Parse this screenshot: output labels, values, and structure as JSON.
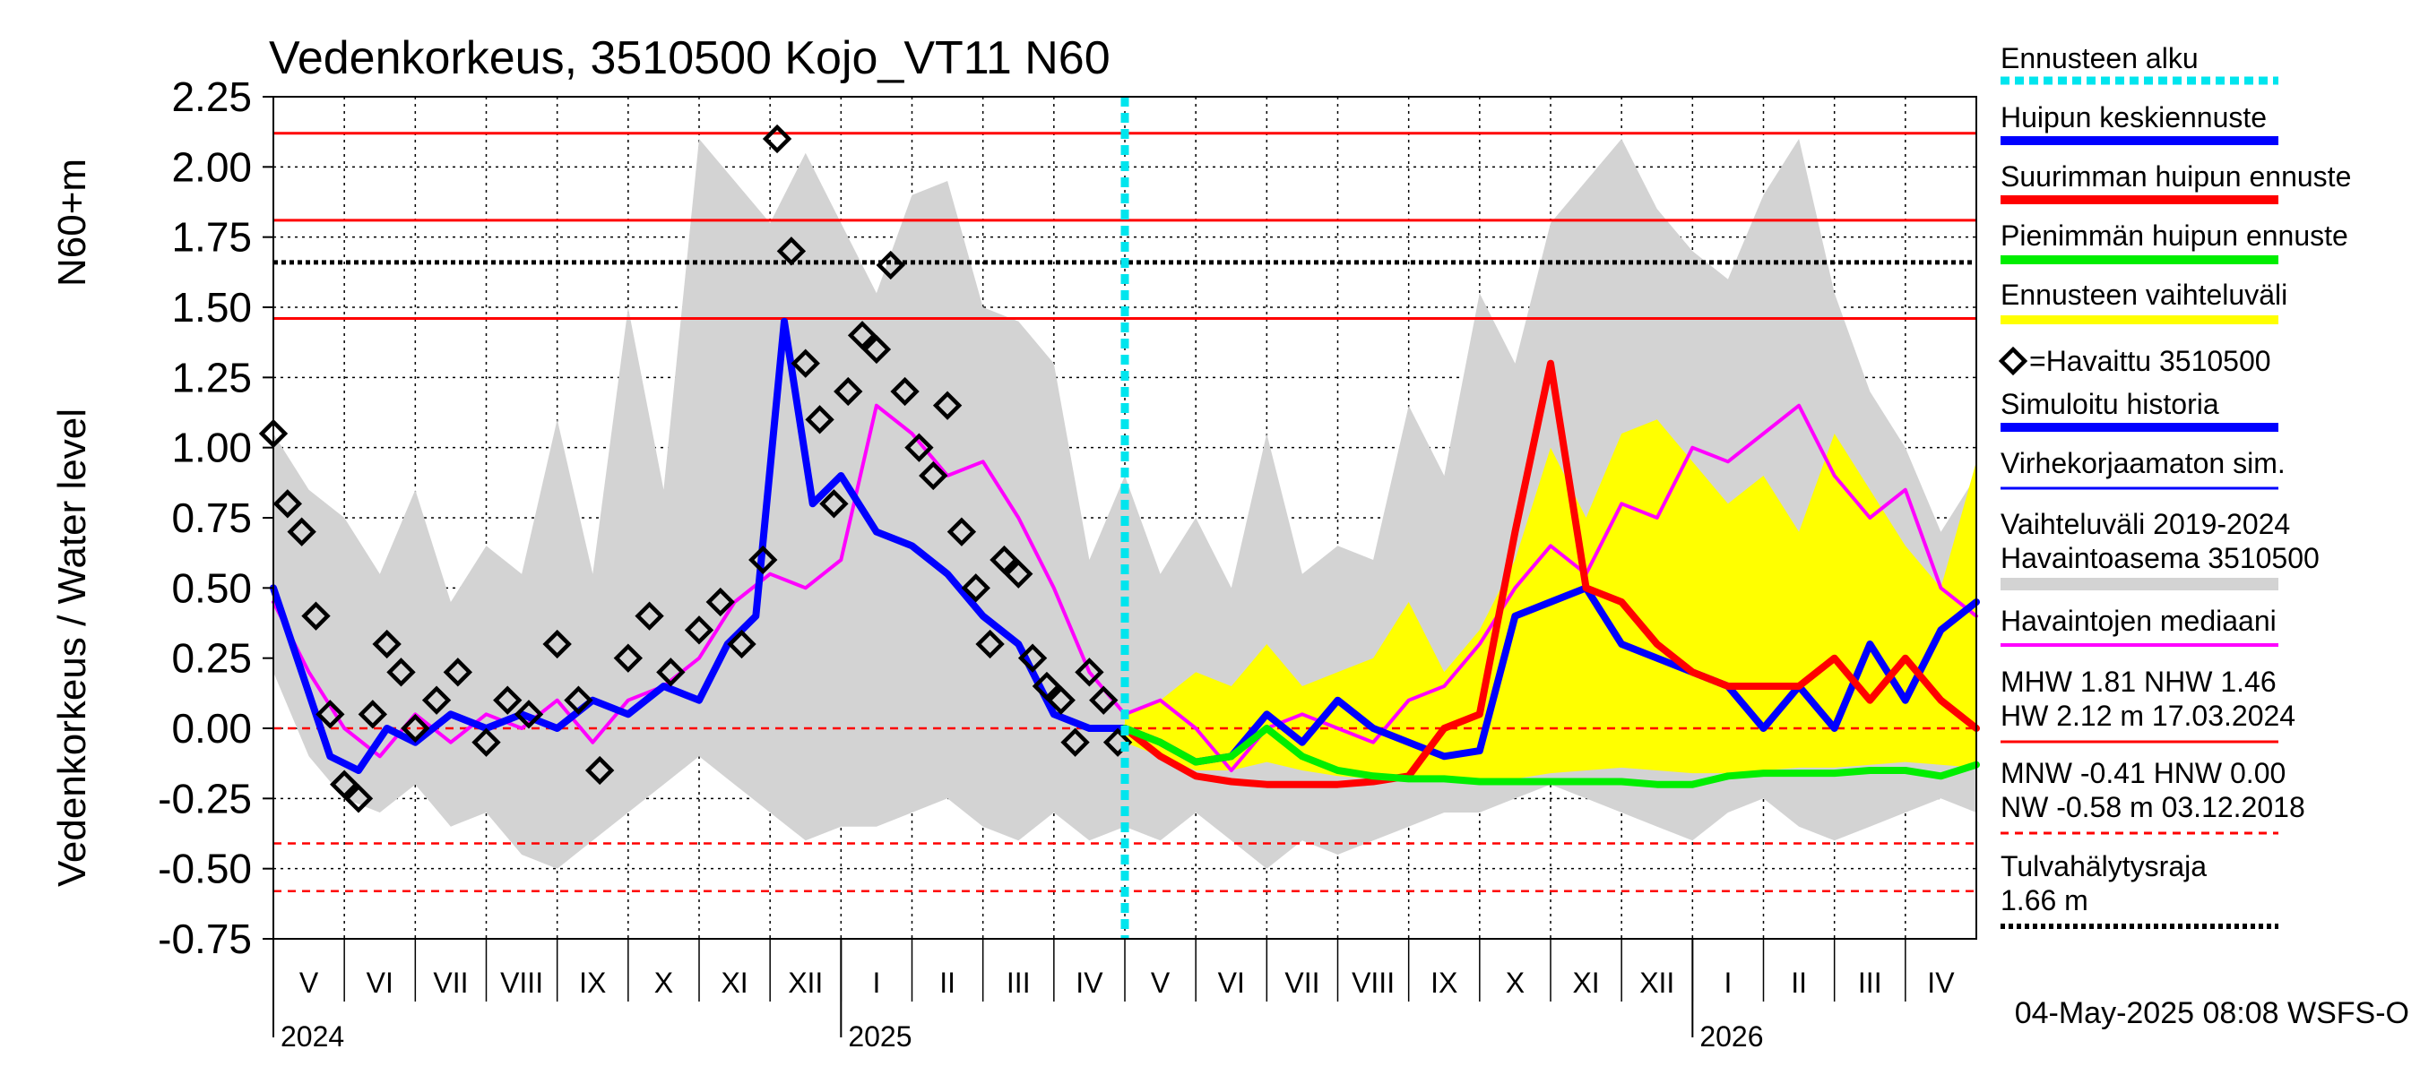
{
  "chart_data": {
    "type": "line",
    "title": "Vedenkorkeus, 3510500 Kojo_VT11 N60",
    "ylabel": "Vedenkorkeus / Water level",
    "ylabel_unit": "N60+m",
    "ylim": [
      -0.75,
      2.25
    ],
    "yticks": [
      2.25,
      2.0,
      1.75,
      1.5,
      1.25,
      1.0,
      0.75,
      0.5,
      0.25,
      0.0,
      -0.25,
      -0.5,
      -0.75
    ],
    "ytick_labels": [
      "2.25",
      "2.00",
      "1.75",
      "1.50",
      "1.25",
      "1.00",
      "0.75",
      "0.50",
      "0.25",
      "0.00",
      "-0.25",
      "-0.50",
      "-0.75"
    ],
    "x_months": [
      "V",
      "VI",
      "VII",
      "VIII",
      "IX",
      "X",
      "XI",
      "XII",
      "I",
      "II",
      "III",
      "IV",
      "V",
      "VI",
      "VII",
      "VIII",
      "IX",
      "X",
      "XI",
      "XII",
      "I",
      "II",
      "III",
      "IV"
    ],
    "x_years": [
      {
        "label": "2024",
        "month_index": 0
      },
      {
        "label": "2025",
        "month_index": 8
      },
      {
        "label": "2026",
        "month_index": 20
      }
    ],
    "forecast_start_month": 12,
    "reference_lines": {
      "HW": 2.12,
      "MHW": 1.81,
      "NHW": 1.46,
      "flood_alert": 1.66,
      "HNW": 0.0,
      "MNW": -0.41,
      "NW": -0.58
    },
    "series": [
      {
        "name": "Vaihteluväli 2019-2024 Havaintoasema 3510500",
        "kind": "band",
        "color": "#d3d3d3",
        "x": [
          0,
          0.5,
          1,
          1.5,
          2,
          2.5,
          3,
          3.5,
          4,
          4.5,
          5,
          5.5,
          6,
          6.5,
          7,
          7.5,
          8,
          8.5,
          9,
          9.5,
          10,
          10.5,
          11,
          11.5,
          12,
          12.5,
          13,
          13.5,
          14,
          14.5,
          15,
          15.5,
          16,
          16.5,
          17,
          17.5,
          18,
          18.5,
          19,
          19.5,
          20,
          20.5,
          21,
          21.5,
          22,
          22.5,
          23,
          23.5,
          24
        ],
        "upper": [
          1.05,
          0.85,
          0.75,
          0.55,
          0.85,
          0.45,
          0.65,
          0.55,
          1.1,
          0.55,
          1.5,
          0.85,
          2.1,
          1.95,
          1.8,
          2.05,
          1.8,
          1.55,
          1.9,
          1.95,
          1.5,
          1.45,
          1.3,
          0.6,
          0.9,
          0.55,
          0.75,
          0.5,
          1.05,
          0.55,
          0.65,
          0.6,
          1.15,
          0.9,
          1.55,
          1.3,
          1.8,
          1.95,
          2.1,
          1.85,
          1.7,
          1.6,
          1.9,
          2.1,
          1.55,
          1.2,
          1.0,
          0.7,
          0.9
        ],
        "lower": [
          0.2,
          -0.1,
          -0.25,
          -0.3,
          -0.2,
          -0.35,
          -0.3,
          -0.45,
          -0.5,
          -0.4,
          -0.3,
          -0.2,
          -0.1,
          -0.2,
          -0.3,
          -0.4,
          -0.35,
          -0.35,
          -0.3,
          -0.25,
          -0.35,
          -0.4,
          -0.3,
          -0.4,
          -0.35,
          -0.4,
          -0.3,
          -0.4,
          -0.5,
          -0.4,
          -0.45,
          -0.4,
          -0.35,
          -0.3,
          -0.3,
          -0.25,
          -0.2,
          -0.25,
          -0.3,
          -0.35,
          -0.4,
          -0.3,
          -0.25,
          -0.35,
          -0.4,
          -0.35,
          -0.3,
          -0.25,
          -0.3
        ]
      },
      {
        "name": "Ennusteen vaihteluväli",
        "kind": "band",
        "color": "#ffff00",
        "x": [
          12,
          12.5,
          13,
          13.5,
          14,
          14.5,
          15,
          15.5,
          16,
          16.5,
          17,
          17.5,
          18,
          18.5,
          19,
          19.5,
          20,
          20.5,
          21,
          21.5,
          22,
          22.5,
          23,
          23.5,
          24
        ],
        "upper": [
          0.05,
          0.1,
          0.2,
          0.15,
          0.3,
          0.15,
          0.2,
          0.25,
          0.45,
          0.2,
          0.35,
          0.6,
          1.0,
          0.75,
          1.05,
          1.1,
          0.95,
          0.8,
          0.9,
          0.7,
          1.05,
          0.85,
          0.65,
          0.5,
          0.95
        ],
        "lower": [
          -0.05,
          -0.1,
          -0.15,
          -0.15,
          -0.12,
          -0.15,
          -0.17,
          -0.18,
          -0.18,
          -0.18,
          -0.2,
          -0.18,
          -0.16,
          -0.15,
          -0.14,
          -0.15,
          -0.16,
          -0.16,
          -0.15,
          -0.14,
          -0.14,
          -0.13,
          -0.12,
          -0.13,
          -0.14
        ]
      },
      {
        "name": "Havaintojen mediaani",
        "kind": "line",
        "color": "#ff00ff",
        "x": [
          0,
          0.5,
          1,
          1.5,
          2,
          2.5,
          3,
          3.5,
          4,
          4.5,
          5,
          5.5,
          6,
          6.5,
          7,
          7.5,
          8,
          8.5,
          9,
          9.5,
          10,
          10.5,
          11,
          11.5,
          12,
          12.5,
          13,
          13.5,
          14,
          14.5,
          15,
          15.5,
          16,
          16.5,
          17,
          17.5,
          18,
          18.5,
          19,
          19.5,
          20,
          20.5,
          21,
          21.5,
          22,
          22.5,
          23,
          23.5,
          24
        ],
        "values": [
          0.45,
          0.2,
          0.0,
          -0.1,
          0.05,
          -0.05,
          0.05,
          0.0,
          0.1,
          -0.05,
          0.1,
          0.15,
          0.25,
          0.45,
          0.55,
          0.5,
          0.6,
          1.15,
          1.05,
          0.9,
          0.95,
          0.75,
          0.5,
          0.2,
          0.05,
          0.1,
          0.0,
          -0.15,
          0.0,
          0.05,
          0.0,
          -0.05,
          0.1,
          0.15,
          0.3,
          0.5,
          0.65,
          0.55,
          0.8,
          0.75,
          1.0,
          0.95,
          1.05,
          1.15,
          0.9,
          0.75,
          0.85,
          0.5,
          0.4
        ]
      },
      {
        "name": "Simuloitu historia",
        "kind": "line",
        "color": "#0000ff",
        "x": [
          0,
          0.4,
          0.8,
          1.2,
          1.6,
          2,
          2.5,
          3,
          3.5,
          4,
          4.5,
          5,
          5.5,
          6,
          6.4,
          6.8,
          7.2,
          7.6,
          8,
          8.5,
          9,
          9.5,
          10,
          10.5,
          11,
          11.5,
          12
        ],
        "values": [
          0.5,
          0.2,
          -0.1,
          -0.15,
          0.0,
          -0.05,
          0.05,
          0.0,
          0.05,
          0.0,
          0.1,
          0.05,
          0.15,
          0.1,
          0.3,
          0.4,
          1.45,
          0.8,
          0.9,
          0.7,
          0.65,
          0.55,
          0.4,
          0.3,
          0.05,
          0.0,
          0.0
        ]
      },
      {
        "name": "Havaittu 3510500",
        "kind": "markers",
        "color": "#000000",
        "x": [
          0,
          0.2,
          0.4,
          0.6,
          0.8,
          1.0,
          1.2,
          1.4,
          1.6,
          1.8,
          2,
          2.3,
          2.6,
          3,
          3.3,
          3.6,
          4,
          4.3,
          4.6,
          5,
          5.3,
          5.6,
          6,
          6.3,
          6.6,
          6.9,
          7.1,
          7.3,
          7.5,
          7.7,
          7.9,
          8.1,
          8.3,
          8.5,
          8.7,
          8.9,
          9.1,
          9.3,
          9.5,
          9.7,
          9.9,
          10.1,
          10.3,
          10.5,
          10.7,
          10.9,
          11.1,
          11.3,
          11.5,
          11.7,
          11.9
        ],
        "values": [
          1.05,
          0.8,
          0.7,
          0.4,
          0.05,
          -0.2,
          -0.25,
          0.05,
          0.3,
          0.2,
          0.0,
          0.1,
          0.2,
          -0.05,
          0.1,
          0.05,
          0.3,
          0.1,
          -0.15,
          0.25,
          0.4,
          0.2,
          0.35,
          0.45,
          0.3,
          0.6,
          2.1,
          1.7,
          1.3,
          1.1,
          0.8,
          1.2,
          1.4,
          1.35,
          1.65,
          1.2,
          1.0,
          0.9,
          1.15,
          0.7,
          0.5,
          0.3,
          0.6,
          0.55,
          0.25,
          0.15,
          0.1,
          -0.05,
          0.2,
          0.1,
          -0.05
        ]
      },
      {
        "name": "Huipun keskiennuste",
        "kind": "line",
        "color": "#0000ff",
        "x": [
          12,
          12.5,
          13,
          13.5,
          14,
          14.5,
          15,
          15.5,
          16,
          16.5,
          17,
          17.5,
          18,
          18.5,
          19,
          19.5,
          20,
          20.5,
          21,
          21.5,
          22,
          22.5,
          23,
          23.5,
          24
        ],
        "values": [
          0.0,
          -0.05,
          -0.12,
          -0.1,
          0.05,
          -0.05,
          0.1,
          0.0,
          -0.05,
          -0.1,
          -0.08,
          0.4,
          0.45,
          0.5,
          0.3,
          0.25,
          0.2,
          0.15,
          0.0,
          0.15,
          0.0,
          0.3,
          0.1,
          0.35,
          0.45
        ]
      },
      {
        "name": "Suurimman huipun ennuste",
        "kind": "line",
        "color": "#ff0000",
        "x": [
          12,
          12.5,
          13,
          13.5,
          14,
          14.5,
          15,
          15.5,
          16,
          16.5,
          17,
          17.5,
          18,
          18.5,
          19,
          19.5,
          20,
          20.5,
          21,
          21.5,
          22,
          22.5,
          23,
          23.5,
          24
        ],
        "values": [
          0.0,
          -0.1,
          -0.17,
          -0.19,
          -0.2,
          -0.2,
          -0.2,
          -0.19,
          -0.17,
          0.0,
          0.05,
          0.7,
          1.3,
          0.5,
          0.45,
          0.3,
          0.2,
          0.15,
          0.15,
          0.15,
          0.25,
          0.1,
          0.25,
          0.1,
          0.0
        ]
      },
      {
        "name": "Pienimmän huipun ennuste",
        "kind": "line",
        "color": "#00ee00",
        "x": [
          12,
          12.5,
          13,
          13.5,
          14,
          14.5,
          15,
          15.5,
          16,
          16.5,
          17,
          17.5,
          18,
          18.5,
          19,
          19.5,
          20,
          20.5,
          21,
          21.5,
          22,
          22.5,
          23,
          23.5,
          24
        ],
        "values": [
          0.0,
          -0.05,
          -0.12,
          -0.1,
          0.0,
          -0.1,
          -0.15,
          -0.17,
          -0.18,
          -0.18,
          -0.19,
          -0.19,
          -0.19,
          -0.19,
          -0.19,
          -0.2,
          -0.2,
          -0.17,
          -0.16,
          -0.16,
          -0.16,
          -0.15,
          -0.15,
          -0.17,
          -0.13
        ]
      }
    ],
    "legend_items": {
      "forecast_start": "Ennusteen alku",
      "mean_peak": "Huipun keskiennuste",
      "max_peak": "Suurimman huipun ennuste",
      "min_peak": "Pienimmän huipun ennuste",
      "forecast_range": "Ennusteen vaihteluväli",
      "observed": "=Havaittu 3510500",
      "simulated": "Simuloitu historia",
      "uncorrected": "Virhekorjaamaton sim.",
      "range_line1": "Vaihteluväli 2019-2024",
      "range_line2": " Havaintoasema 3510500",
      "median": "Havaintojen mediaani",
      "stats_mhw": "MHW   1.81 NHW   1.46",
      "stats_hw": "HW   2.12 m 17.03.2024",
      "stats_mnw": "MNW  -0.41 HNW   0.00",
      "stats_nw": "NW  -0.58 m 03.12.2018",
      "flood_label": "Tulvahälytysraja",
      "flood_value": " 1.66 m"
    },
    "footer": "04-May-2025 08:08 WSFS-O"
  }
}
